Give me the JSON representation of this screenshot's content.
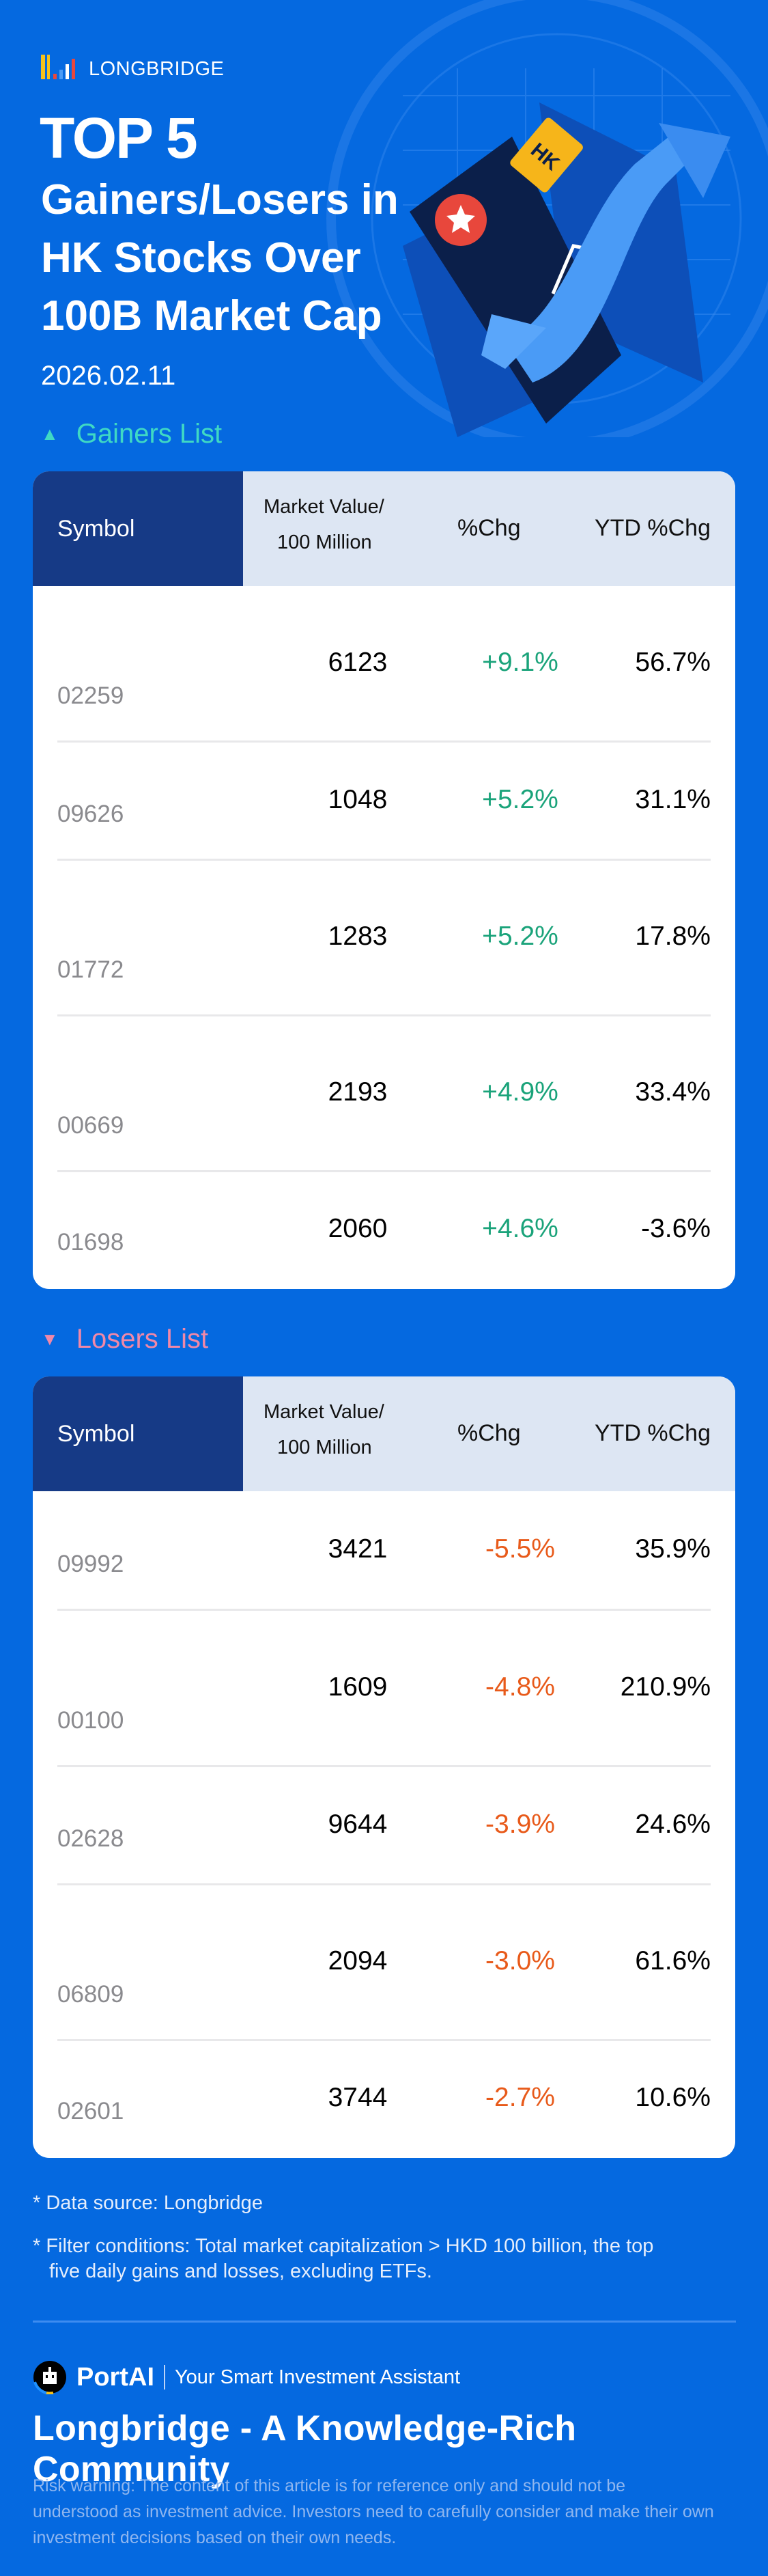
{
  "brand": {
    "logo_text": "LONGBRIDGE"
  },
  "header": {
    "top": "TOP 5",
    "title_lines": [
      "Gainers/Losers in",
      "HK Stocks Over",
      "100B Market Cap"
    ],
    "date": "2026.02.11",
    "hk_tag": "HK"
  },
  "colors": {
    "background": "#0569e0",
    "header_dark": "#163a86",
    "header_light": "#dde6f3",
    "gain": "#1aa37a",
    "loss": "#e85a1a",
    "gainers_title": "#3fd9c4",
    "losers_title": "#f088a8"
  },
  "columns": {
    "symbol": "Symbol",
    "market_value_line1": "Market Value/",
    "market_value_line2": "100 Million",
    "chg": "%Chg",
    "ytd": "YTD %Chg"
  },
  "gainers": {
    "title": "Gainers List",
    "icon": "triangle-up-icon",
    "rows": [
      {
        "symbol": "02259",
        "market_value": "6123",
        "chg": "+9.1%",
        "ytd": "56.7%"
      },
      {
        "symbol": "09626",
        "market_value": "1048",
        "chg": "+5.2%",
        "ytd": "31.1%"
      },
      {
        "symbol": "01772",
        "market_value": "1283",
        "chg": "+5.2%",
        "ytd": "17.8%"
      },
      {
        "symbol": "00669",
        "market_value": "2193",
        "chg": "+4.9%",
        "ytd": "33.4%"
      },
      {
        "symbol": "01698",
        "market_value": "2060",
        "chg": "+4.6%",
        "ytd": "-3.6%"
      }
    ]
  },
  "losers": {
    "title": "Losers List",
    "icon": "triangle-down-icon",
    "rows": [
      {
        "symbol": "09992",
        "market_value": "3421",
        "chg": "-5.5%",
        "ytd": "35.9%"
      },
      {
        "symbol": "00100",
        "market_value": "1609",
        "chg": "-4.8%",
        "ytd": "210.9%"
      },
      {
        "symbol": "02628",
        "market_value": "9644",
        "chg": "-3.9%",
        "ytd": "24.6%"
      },
      {
        "symbol": "06809",
        "market_value": "2094",
        "chg": "-3.0%",
        "ytd": "61.6%"
      },
      {
        "symbol": "02601",
        "market_value": "3744",
        "chg": "-2.7%",
        "ytd": "10.6%"
      }
    ]
  },
  "notes": {
    "source": "* Data source: Longbridge",
    "filter_line1": "* Filter conditions: Total market capitalization > HKD 100 billion, the top",
    "filter_line2": "five daily gains and losses, excluding ETFs."
  },
  "footer": {
    "portai": "PortAI",
    "portai_tagline": "Your Smart Investment Assistant",
    "community": "Longbridge - A Knowledge-Rich Community",
    "risk_warning": "Risk warning: The content of this article is for reference only and should not be understood as investment advice. Investors need to carefully consider and make their own investment decisions based on their own needs."
  }
}
